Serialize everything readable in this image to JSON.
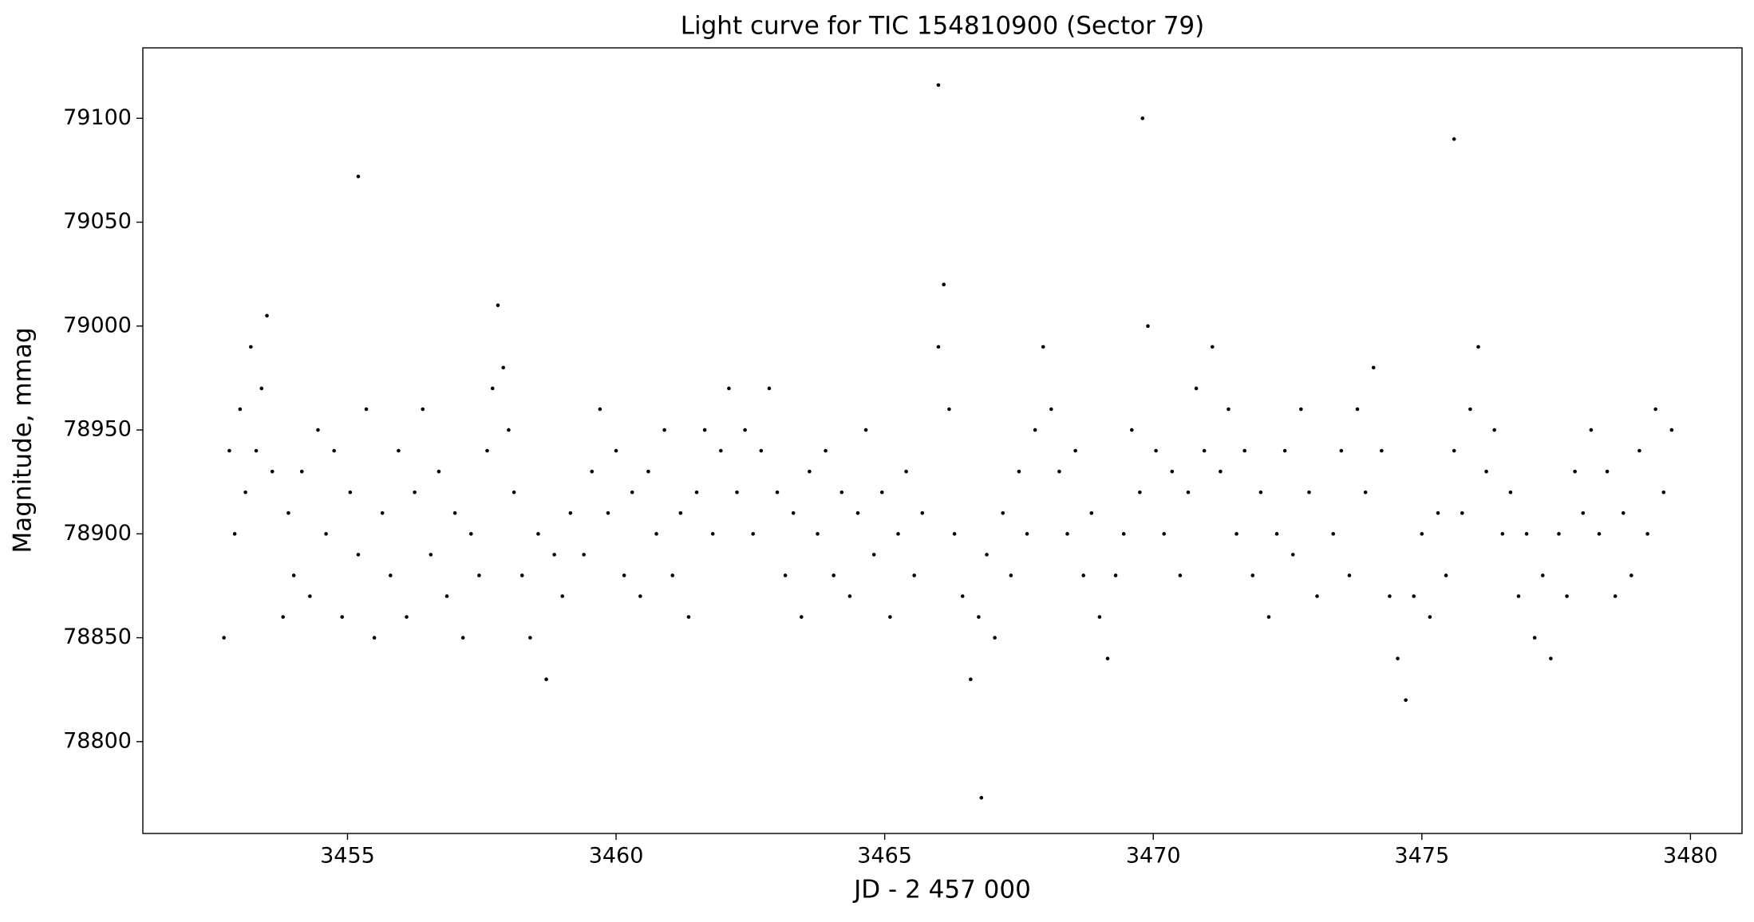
{
  "chart_data": {
    "type": "scatter",
    "title": "Light curve for TIC 154810900 (Sector 79)",
    "x_label": "JD - 2 457 000",
    "y_label": "Magnitude, mmag",
    "color": "#000000",
    "xlim": [
      3451.19,
      3480.96
    ],
    "ylim": [
      78755.8,
      79133.9
    ],
    "xticks": [
      3455,
      3460,
      3465,
      3470,
      3475,
      3480
    ],
    "yticks": [
      78800,
      78850,
      78900,
      78950,
      79000,
      79050,
      79100
    ],
    "x": [
      3452.7,
      3452.8,
      3452.9,
      3453.0,
      3453.1,
      3453.2,
      3453.3,
      3453.4,
      3453.5,
      3453.6,
      3453.8,
      3453.9,
      3454.0,
      3454.15,
      3454.3,
      3454.45,
      3454.6,
      3454.75,
      3454.9,
      3455.05,
      3455.2,
      3455.35,
      3455.5,
      3455.65,
      3455.8,
      3455.95,
      3456.1,
      3456.25,
      3456.4,
      3456.55,
      3456.7,
      3456.85,
      3457.0,
      3457.15,
      3457.3,
      3457.45,
      3457.6,
      3457.7,
      3457.8,
      3457.9,
      3458.0,
      3458.1,
      3458.25,
      3458.4,
      3458.55,
      3458.7,
      3458.85,
      3459.0,
      3459.15,
      3459.4,
      3459.55,
      3459.7,
      3459.85,
      3460.0,
      3460.15,
      3460.3,
      3460.45,
      3460.6,
      3460.75,
      3460.9,
      3461.05,
      3461.2,
      3461.35,
      3461.5,
      3461.65,
      3461.8,
      3461.95,
      3462.1,
      3462.25,
      3462.4,
      3462.55,
      3462.7,
      3462.85,
      3463.0,
      3463.15,
      3463.3,
      3463.45,
      3463.6,
      3463.75,
      3463.9,
      3464.05,
      3464.2,
      3464.35,
      3464.5,
      3464.65,
      3464.8,
      3464.95,
      3465.1,
      3465.25,
      3465.4,
      3465.55,
      3465.7,
      3466.0,
      3466.1,
      3466.2,
      3466.3,
      3466.45,
      3466.6,
      3466.75,
      3466.9,
      3467.05,
      3467.2,
      3467.35,
      3467.5,
      3467.65,
      3467.8,
      3467.95,
      3468.1,
      3468.25,
      3468.4,
      3468.55,
      3468.7,
      3468.85,
      3469.0,
      3469.15,
      3469.3,
      3469.45,
      3469.6,
      3469.75,
      3469.9,
      3470.05,
      3470.2,
      3470.35,
      3470.5,
      3470.65,
      3470.8,
      3470.95,
      3471.1,
      3471.25,
      3471.4,
      3471.55,
      3471.7,
      3471.85,
      3472.0,
      3472.15,
      3472.3,
      3472.45,
      3472.6,
      3472.75,
      3472.9,
      3473.05,
      3473.35,
      3473.5,
      3473.65,
      3473.8,
      3473.95,
      3474.1,
      3474.25,
      3474.4,
      3474.55,
      3474.7,
      3474.85,
      3475.0,
      3475.15,
      3475.3,
      3475.45,
      3475.6,
      3475.75,
      3475.9,
      3476.05,
      3476.2,
      3476.35,
      3476.5,
      3476.65,
      3476.8,
      3476.95,
      3477.1,
      3477.25,
      3477.4,
      3477.55,
      3477.7,
      3477.85,
      3478.0,
      3478.15,
      3478.3,
      3478.45,
      3478.6,
      3478.75,
      3478.9,
      3479.05,
      3479.2,
      3479.35,
      3479.5,
      3479.65,
      3466.0,
      3466.8,
      3469.8,
      3475.6,
      3455.2
    ],
    "values": [
      78850,
      78940,
      78900,
      78960,
      78920,
      78990,
      78940,
      78970,
      79005,
      78930,
      78860,
      78910,
      78880,
      78930,
      78870,
      78950,
      78900,
      78940,
      78860,
      78920,
      78890,
      78960,
      78850,
      78910,
      78880,
      78940,
      78860,
      78920,
      78960,
      78890,
      78930,
      78870,
      78910,
      78850,
      78900,
      78880,
      78940,
      78970,
      79010,
      78980,
      78950,
      78920,
      78880,
      78850,
      78900,
      78830,
      78890,
      78870,
      78910,
      78890,
      78930,
      78960,
      78910,
      78940,
      78880,
      78920,
      78870,
      78930,
      78900,
      78950,
      78880,
      78910,
      78860,
      78920,
      78950,
      78900,
      78940,
      78970,
      78920,
      78950,
      78900,
      78940,
      78970,
      78920,
      78880,
      78910,
      78860,
      78930,
      78900,
      78940,
      78880,
      78920,
      78870,
      78910,
      78950,
      78890,
      78920,
      78860,
      78900,
      78930,
      78880,
      78910,
      78990,
      79020,
      78960,
      78900,
      78870,
      78830,
      78860,
      78890,
      78850,
      78910,
      78880,
      78930,
      78900,
      78950,
      78990,
      78960,
      78930,
      78900,
      78940,
      78880,
      78910,
      78860,
      78840,
      78880,
      78900,
      78950,
      78920,
      79000,
      78940,
      78900,
      78930,
      78880,
      78920,
      78970,
      78940,
      78990,
      78930,
      78960,
      78900,
      78940,
      78880,
      78920,
      78860,
      78900,
      78940,
      78890,
      78960,
      78920,
      78870,
      78900,
      78940,
      78880,
      78960,
      78920,
      78980,
      78940,
      78870,
      78840,
      78820,
      78870,
      78900,
      78860,
      78910,
      78880,
      78940,
      78910,
      78960,
      78990,
      78930,
      78950,
      78900,
      78920,
      78870,
      78900,
      78850,
      78880,
      78840,
      78900,
      78870,
      78930,
      78910,
      78950,
      78900,
      78930,
      78870,
      78910,
      78880,
      78940,
      78900,
      78960,
      78920,
      78950,
      79116,
      78773,
      79100,
      79090,
      79072
    ]
  }
}
